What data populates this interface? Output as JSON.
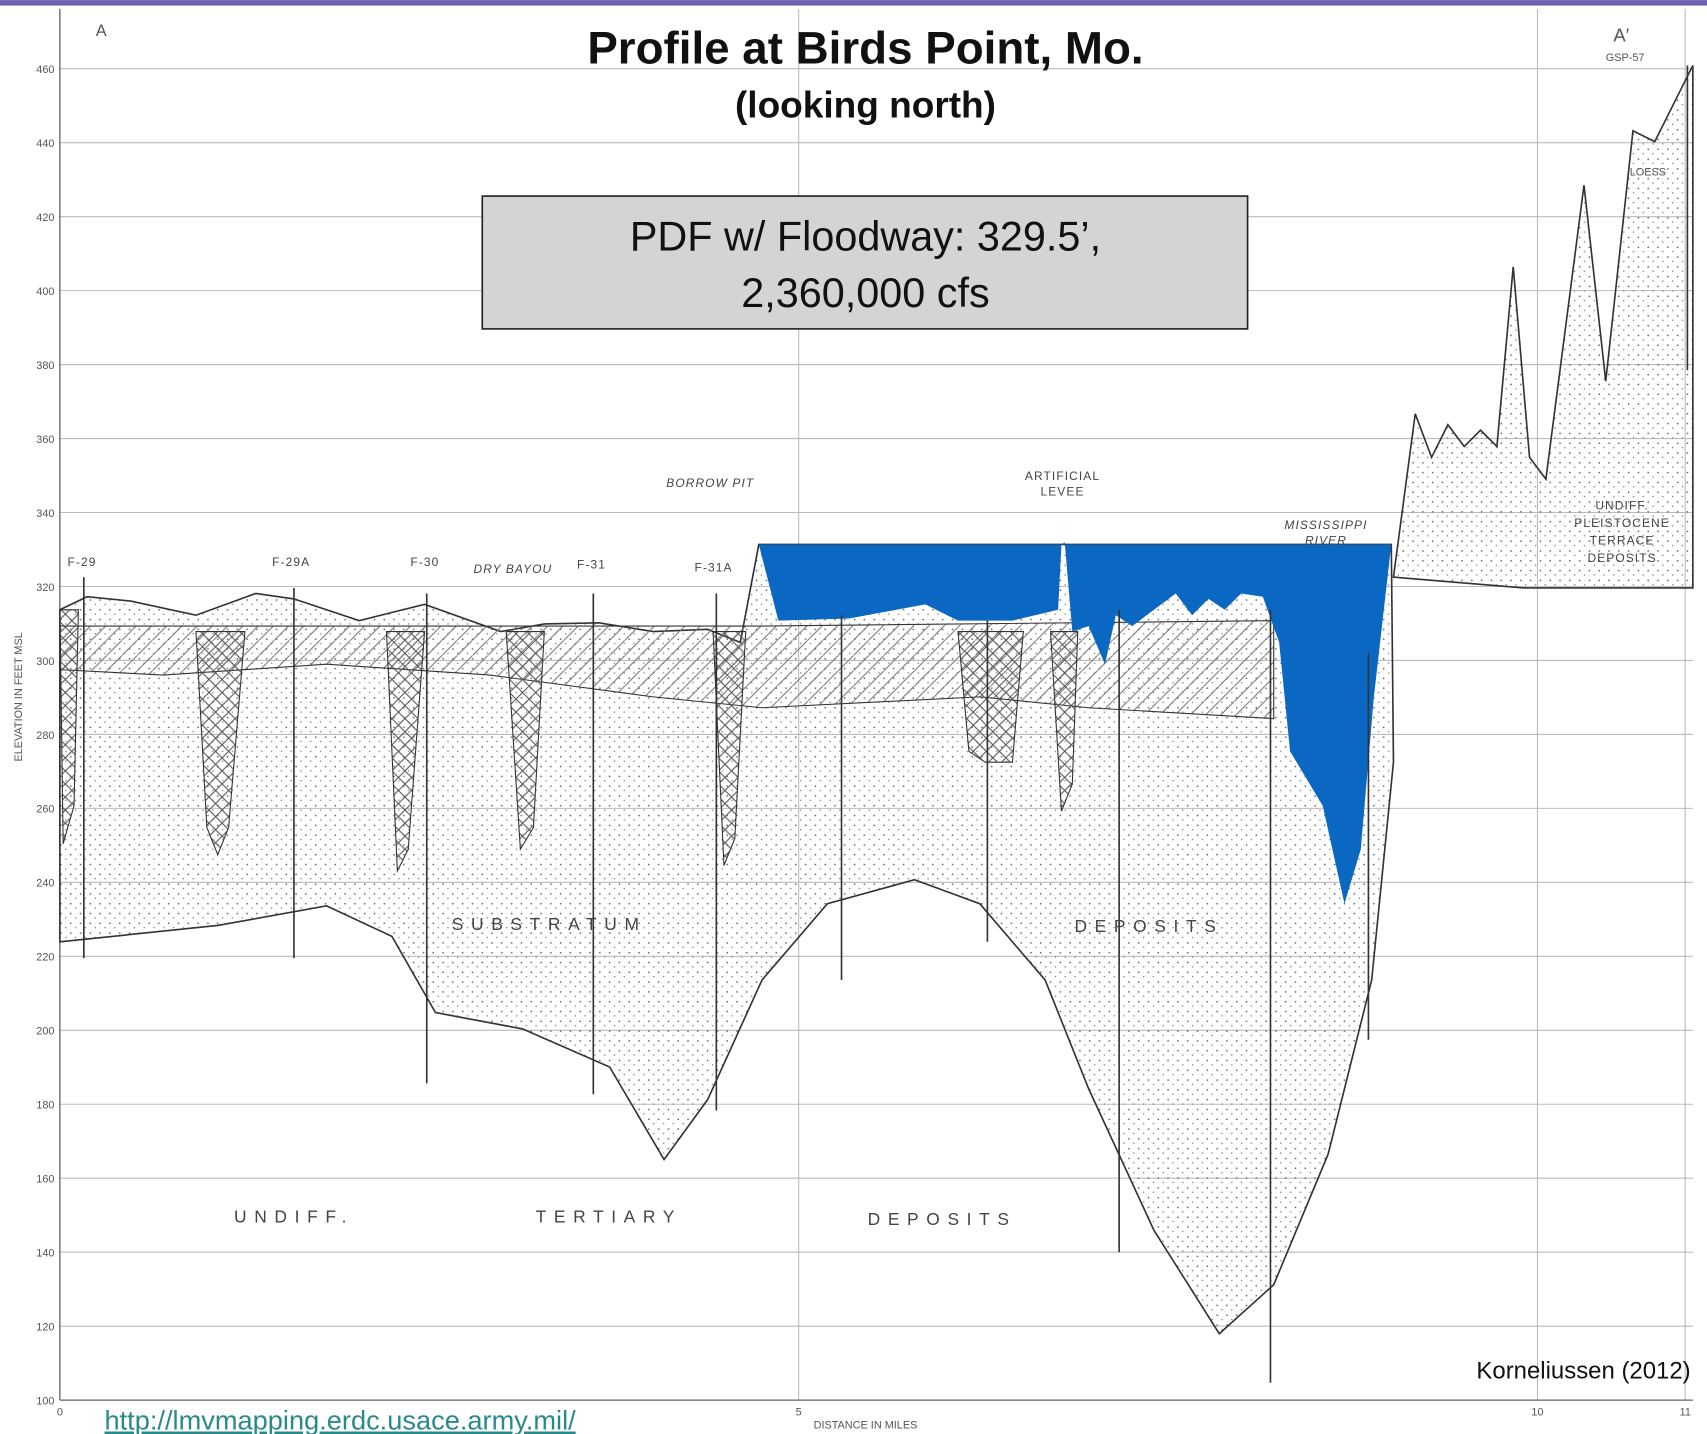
{
  "title": "Profile at Birds Point, Mo.",
  "subtitle": "(looking north)",
  "callout": {
    "line1": "PDF w/ Floodway: 329.5’,",
    "line2": "2,360,000 cfs"
  },
  "axes": {
    "y_label": "ELEVATION IN FEET MSL",
    "y_ticks": [
      460,
      440,
      420,
      400,
      380,
      360,
      340,
      320,
      300,
      280,
      260,
      240,
      220,
      200,
      180,
      160,
      140,
      120,
      100
    ],
    "x_label": "DISTANCE IN MILES",
    "x_ticks": [
      {
        "value": 0,
        "label": "0"
      },
      {
        "value": 5,
        "label": "5"
      },
      {
        "value": 10,
        "label": "10"
      },
      {
        "value": 11,
        "label": "11"
      }
    ]
  },
  "section": {
    "left_end": "A",
    "right_end": "A′",
    "right_boring": "GSP-57"
  },
  "borings": [
    "F-29",
    "F-29A",
    "F-30",
    "F-31",
    "F-31A"
  ],
  "annotations": {
    "dry_bayou": "DRY BAYOU",
    "borrow_pit": "BORROW PIT",
    "levee_1": "ARTIFICIAL",
    "levee_2": "LEVEE",
    "river_1": "MISSISSIPPI",
    "river_2": "RIVER",
    "loess": "LOESS",
    "terrace": [
      "UNDIFF.",
      "PLEISTOCENE",
      "TERRACE",
      "DEPOSITS"
    ],
    "substratum": "SUBSTRATUM",
    "deposits_upper": "DEPOSITS",
    "undiff": "UNDIFF.",
    "tertiary": "TERTIARY",
    "deposits_lower": "DEPOSITS"
  },
  "credit": "Korneliussen (2012)",
  "url": "http://lmvmapping.erdc.usace.army.mil/"
}
